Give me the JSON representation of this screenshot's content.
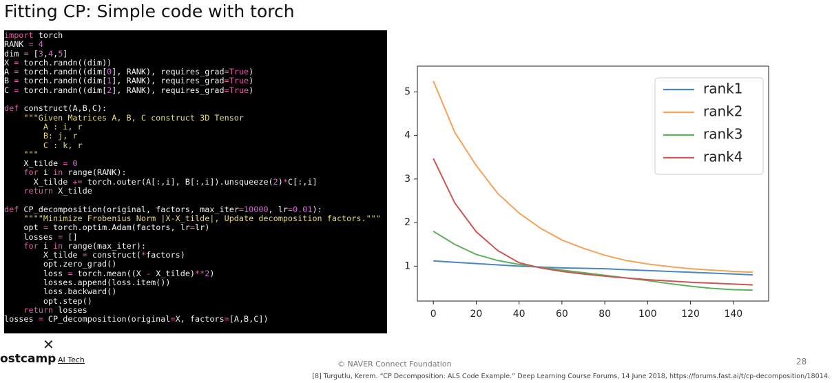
{
  "title": "Fitting CP: Simple code with torch",
  "code": {
    "blocks": [
      [
        "import torch",
        "RANK = 4",
        "dim = [3,4,5]",
        "X = torch.randn((dim))",
        "A = torch.randn((dim[0], RANK), requires_grad=True)",
        "B = torch.randn((dim[1], RANK), requires_grad=True)",
        "C = torch.randn((dim[2], RANK), requires_grad=True)"
      ],
      [
        "def construct(A,B,C):",
        "    \"\"\"Given Matrices A, B, C construct 3D Tensor",
        "        A : i, r",
        "        B: j, r",
        "        C : k, r",
        "    \"\"\"",
        "    X_tilde = 0",
        "    for i in range(RANK):",
        "      X_tilde += torch.outer(A[:,i], B[:,i]).unsqueeze(2)*C[:,i]",
        "    return X_tilde"
      ],
      [
        "def CP_decomposition(original, factors, max_iter=10000, lr=0.01):",
        "    \"\"\"\"Minimize Frobenius Norm |X-X_tilde|, Update decomposition factors.\"\"\"",
        "    opt = torch.optim.Adam(factors, lr=lr)",
        "    losses = []",
        "    for i in range(max_iter):",
        "        X_tilde = construct(*factors)",
        "        opt.zero_grad()",
        "        loss = torch.mean((X - X_tilde)**2)",
        "        losses.append(loss.item())",
        "        loss.backward()",
        "        opt.step()",
        "    return losses",
        "losses = CP_decomposition(original=X, factors=[A,B,C])"
      ]
    ]
  },
  "logo": {
    "brand": "ostcamp",
    "sub": "AI Tech"
  },
  "footer": {
    "copyright": "© NAVER Connect Foundation",
    "page": "28",
    "citation": "[8] Turgutlu, Kerem. “CP Decomposition: ALS Code Example.” Deep Learning Course Forums, 14 June 2018, https://forums.fast.ai/t/cp-decomposition/18014."
  },
  "chart_data": {
    "type": "line",
    "x": [
      0,
      10,
      20,
      30,
      40,
      50,
      60,
      70,
      80,
      90,
      100,
      110,
      120,
      130,
      140,
      149
    ],
    "series": [
      {
        "name": "rank1",
        "color": "#4c86c0",
        "values": [
          1.12,
          1.09,
          1.06,
          1.03,
          1.0,
          0.98,
          0.96,
          0.95,
          0.94,
          0.92,
          0.9,
          0.88,
          0.86,
          0.84,
          0.82,
          0.8
        ]
      },
      {
        "name": "rank2",
        "color": "#f6a257",
        "values": [
          5.25,
          4.07,
          3.31,
          2.67,
          2.22,
          1.87,
          1.6,
          1.41,
          1.25,
          1.13,
          1.05,
          0.99,
          0.94,
          0.91,
          0.88,
          0.86
        ]
      },
      {
        "name": "rank3",
        "color": "#5fb05a",
        "values": [
          1.8,
          1.5,
          1.27,
          1.13,
          1.04,
          0.97,
          0.91,
          0.85,
          0.79,
          0.73,
          0.67,
          0.6,
          0.54,
          0.49,
          0.46,
          0.45
        ]
      },
      {
        "name": "rank4",
        "color": "#cc5452",
        "values": [
          3.47,
          2.45,
          1.79,
          1.36,
          1.08,
          0.96,
          0.88,
          0.82,
          0.77,
          0.73,
          0.69,
          0.66,
          0.63,
          0.61,
          0.59,
          0.57
        ]
      }
    ],
    "xlim": [
      -7.45,
      156.45
    ],
    "ylim": [
      0.2,
      5.59
    ],
    "xticks": [
      0,
      20,
      40,
      60,
      80,
      100,
      120,
      140
    ],
    "yticks": [
      1,
      2,
      3,
      4,
      5
    ],
    "legend": "upper right"
  }
}
